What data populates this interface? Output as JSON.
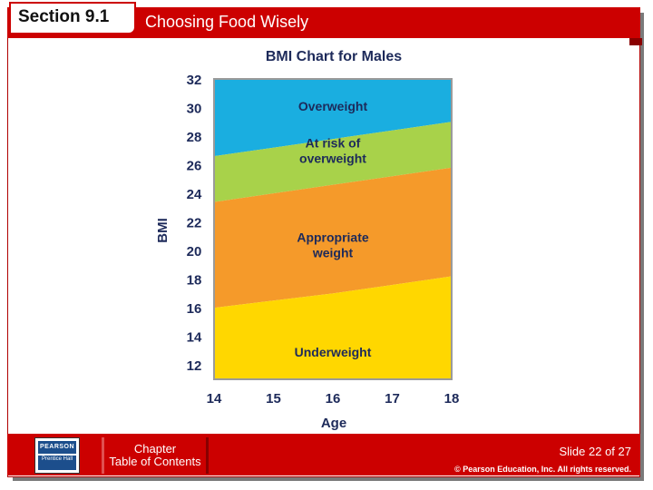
{
  "header": {
    "section_label": "Section 9.1",
    "title": "Choosing Food Wisely"
  },
  "footer": {
    "logo_top": "PEARSON",
    "logo_bottom": "Prentice Hall",
    "toc_line1": "Chapter",
    "toc_line2": "Table of Contents",
    "slide_number": "Slide 22 of 27",
    "copyright": "© Pearson Education, Inc. All rights reserved."
  },
  "colors": {
    "header_red": "#cc0000",
    "overweight": "#1aaee0",
    "at_risk": "#a8d24a",
    "appropriate": "#f59a2a",
    "underweight": "#ffd700"
  },
  "chart_data": {
    "type": "area",
    "title": "BMI Chart for Males",
    "xlabel": "Age",
    "ylabel": "BMI",
    "x": [
      14,
      15,
      16,
      17,
      18
    ],
    "xlim": [
      14,
      18
    ],
    "ylim": [
      11,
      32
    ],
    "xticks": [
      "14",
      "15",
      "16",
      "17",
      "18"
    ],
    "yticks": [
      "32",
      "30",
      "28",
      "26",
      "24",
      "22",
      "20",
      "18",
      "16",
      "14",
      "12"
    ],
    "boundaries": [
      {
        "name": "underweight_upper",
        "values": [
          16.0,
          16.5,
          17.0,
          17.6,
          18.2
        ]
      },
      {
        "name": "at_risk_lower",
        "values": [
          23.4,
          24.0,
          24.6,
          25.2,
          25.8
        ]
      },
      {
        "name": "overweight_lower",
        "values": [
          26.6,
          27.2,
          27.8,
          28.4,
          29.0
        ]
      }
    ],
    "regions": [
      {
        "label": [
          "Overweight"
        ],
        "color": "#1aaee0",
        "label_at": [
          16,
          30.1
        ]
      },
      {
        "label": [
          "At risk of",
          "overweight"
        ],
        "color": "#a8d24a",
        "label_at": [
          16,
          27.0
        ]
      },
      {
        "label": [
          "Appropriate",
          "weight"
        ],
        "color": "#f59a2a",
        "label_at": [
          16,
          20.4
        ]
      },
      {
        "label": [
          "Underweight"
        ],
        "color": "#ffd700",
        "label_at": [
          16,
          12.9
        ]
      }
    ]
  }
}
